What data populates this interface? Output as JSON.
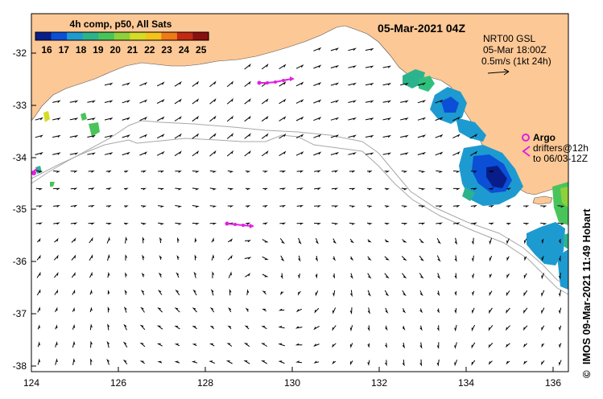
{
  "header": {
    "date_label": "05-Mar-2021 04Z"
  },
  "colorbar": {
    "title": "4h comp, p50, All Sats",
    "ticks": [
      "16",
      "17",
      "18",
      "19",
      "20",
      "21",
      "22",
      "23",
      "24",
      "25"
    ],
    "colors": [
      "#081d8a",
      "#0b4fd6",
      "#1d9bd0",
      "#2cb38a",
      "#49c45a",
      "#8fd13a",
      "#d4dc26",
      "#f4c21b",
      "#f07a16",
      "#c22a12",
      "#8a1010"
    ]
  },
  "current_legend": {
    "line1": "NRT00 GSL",
    "line2": "05-Mar 18:00Z",
    "line3": "0.5m/s (1kt 24h)"
  },
  "argo_legend": {
    "label": "Argo",
    "drifters_line1": "drifters@12h",
    "drifters_line2": "to 06/03-12Z"
  },
  "axes": {
    "lon_ticks": [
      "124",
      "126",
      "128",
      "130",
      "132",
      "134",
      "136"
    ],
    "lat_ticks": [
      "-32",
      "-33",
      "-34",
      "-35",
      "-36",
      "-37",
      "-38"
    ]
  },
  "credit": {
    "copyright_symbol": "©",
    "text": "IMOS 09-Mar-2021 11:49 Hobart"
  },
  "colors": {
    "land": "#fcc896",
    "bathymetry": "#a8a8a8",
    "argo": "#e020e0"
  }
}
